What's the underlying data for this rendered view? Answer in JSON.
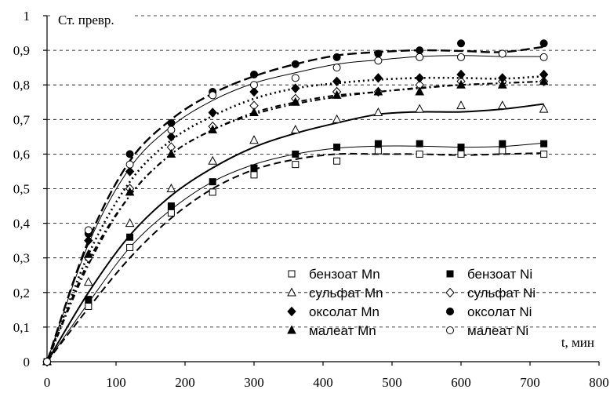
{
  "chart_data": {
    "type": "scatter",
    "title": "",
    "xlabel": "t, мин",
    "ylabel": "Ст. превр.",
    "xlim": [
      0,
      800
    ],
    "ylim": [
      0,
      1
    ],
    "x_ticks": [
      "0",
      "100",
      "200",
      "300",
      "400",
      "500",
      "600",
      "700",
      "800"
    ],
    "y_ticks": [
      "0",
      "0,1",
      "0,2",
      "0,3",
      "0,4",
      "0,5",
      "0,6",
      "0,7",
      "0,8",
      "0,9",
      "1"
    ],
    "grid": "horizontal dashed",
    "legend_position": "bottom-right",
    "series": [
      {
        "name": "бензоат Mn",
        "marker": "square-open",
        "color": "#000000",
        "x": [
          0,
          60,
          120,
          180,
          240,
          300,
          360,
          420,
          480,
          540,
          600,
          660,
          720
        ],
        "y": [
          0,
          0.16,
          0.33,
          0.43,
          0.49,
          0.54,
          0.57,
          0.58,
          0.61,
          0.6,
          0.6,
          0.61,
          0.6
        ],
        "line_style": "dashed",
        "curve_y": [
          0,
          0.155,
          0.3,
          0.415,
          0.5,
          0.555,
          0.585,
          0.6,
          0.6,
          0.6,
          0.597,
          0.6,
          0.603
        ]
      },
      {
        "name": "бензоат Ni",
        "marker": "square-filled",
        "color": "#000000",
        "x": [
          0,
          60,
          120,
          180,
          240,
          300,
          360,
          420,
          480,
          540,
          600,
          660,
          720
        ],
        "y": [
          0,
          0.18,
          0.36,
          0.45,
          0.52,
          0.56,
          0.6,
          0.62,
          0.63,
          0.63,
          0.62,
          0.63,
          0.63
        ],
        "line_style": "solid-thin",
        "curve_y": [
          0,
          0.17,
          0.33,
          0.44,
          0.52,
          0.57,
          0.6,
          0.617,
          0.623,
          0.623,
          0.62,
          0.622,
          0.632
        ]
      },
      {
        "name": "сульфат Mn",
        "marker": "triangle-open",
        "color": "#000000",
        "x": [
          0,
          60,
          120,
          180,
          240,
          300,
          360,
          420,
          480,
          540,
          600,
          660,
          720
        ],
        "y": [
          0,
          0.23,
          0.4,
          0.5,
          0.58,
          0.64,
          0.67,
          0.7,
          0.72,
          0.73,
          0.74,
          0.74,
          0.73
        ],
        "line_style": "solid-thick",
        "curve_y": [
          0,
          0.2,
          0.365,
          0.48,
          0.56,
          0.62,
          0.66,
          0.69,
          0.715,
          0.722,
          0.722,
          0.73,
          0.745
        ]
      },
      {
        "name": "сульфат Ni",
        "marker": "diamond-open",
        "color": "#000000",
        "x": [
          0,
          60,
          120,
          180,
          240,
          300,
          360,
          420,
          480,
          540,
          600,
          660,
          720
        ],
        "y": [
          0,
          0.3,
          0.5,
          0.62,
          0.68,
          0.74,
          0.76,
          0.78,
          0.78,
          0.8,
          0.81,
          0.81,
          0.81
        ],
        "line_style": "dash-dot",
        "curve_y": [
          0,
          0.28,
          0.48,
          0.6,
          0.67,
          0.72,
          0.75,
          0.77,
          0.78,
          0.792,
          0.8,
          0.805,
          0.81
        ]
      },
      {
        "name": "оксолат Mn",
        "marker": "diamond-filled",
        "color": "#000000",
        "x": [
          0,
          60,
          120,
          180,
          240,
          300,
          360,
          420,
          480,
          540,
          600,
          660,
          720
        ],
        "y": [
          0,
          0.35,
          0.55,
          0.65,
          0.72,
          0.78,
          0.79,
          0.81,
          0.82,
          0.82,
          0.83,
          0.82,
          0.83
        ],
        "line_style": "dotted",
        "curve_y": [
          0,
          0.31,
          0.52,
          0.64,
          0.71,
          0.76,
          0.79,
          0.805,
          0.815,
          0.82,
          0.82,
          0.818,
          0.825
        ]
      },
      {
        "name": "оксолат Ni",
        "marker": "circle-filled",
        "color": "#000000",
        "x": [
          0,
          60,
          120,
          180,
          240,
          300,
          360,
          420,
          480,
          540,
          600,
          660,
          720
        ],
        "y": [
          0,
          0.37,
          0.6,
          0.69,
          0.78,
          0.83,
          0.86,
          0.88,
          0.89,
          0.9,
          0.92,
          0.89,
          0.92
        ],
        "line_style": "dashed-long",
        "curve_y": [
          0,
          0.35,
          0.58,
          0.7,
          0.775,
          0.825,
          0.86,
          0.885,
          0.895,
          0.9,
          0.898,
          0.895,
          0.91
        ]
      },
      {
        "name": "малеат Mn",
        "marker": "triangle-filled",
        "color": "#000000",
        "x": [
          0,
          60,
          120,
          180,
          240,
          300,
          360,
          420,
          480,
          540,
          600,
          660,
          720
        ],
        "y": [
          0,
          0.31,
          0.49,
          0.6,
          0.67,
          0.72,
          0.75,
          0.77,
          0.78,
          0.78,
          0.8,
          0.8,
          0.81
        ],
        "line_style": "dash-dot",
        "curve_y": [
          0,
          0.29,
          0.48,
          0.6,
          0.67,
          0.715,
          0.745,
          0.765,
          0.78,
          0.79,
          0.8,
          0.805,
          0.81
        ]
      },
      {
        "name": "малеат Ni",
        "marker": "circle-open",
        "color": "#000000",
        "x": [
          0,
          60,
          120,
          180,
          240,
          300,
          360,
          420,
          480,
          540,
          600,
          660,
          720
        ],
        "y": [
          0,
          0.38,
          0.57,
          0.67,
          0.77,
          0.8,
          0.82,
          0.85,
          0.87,
          0.88,
          0.88,
          0.89,
          0.88
        ],
        "line_style": "solid-thin",
        "curve_y": [
          0,
          0.34,
          0.56,
          0.68,
          0.755,
          0.805,
          0.835,
          0.86,
          0.872,
          0.882,
          0.885,
          0.882,
          0.882
        ]
      }
    ]
  }
}
